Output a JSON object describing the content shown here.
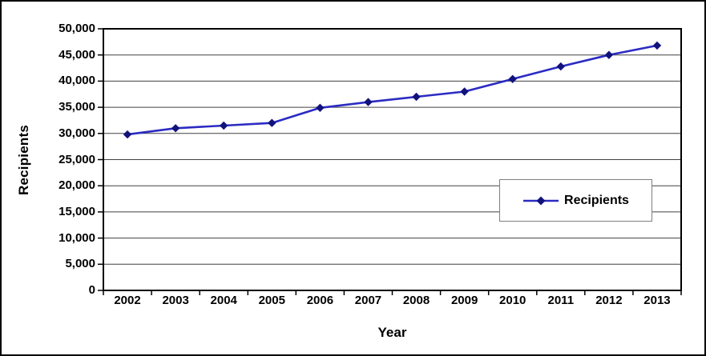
{
  "chart": {
    "y_axis_title": "Recipients",
    "x_axis_title": "Year",
    "legend_label": "Recipients",
    "colors": {
      "line": "#2b2bc3",
      "marker": "#12127d",
      "gridline": "#404040",
      "axis": "#000000",
      "legend_border": "#7f7f7f",
      "background": "#ffffff"
    }
  },
  "chart_data": {
    "type": "line",
    "title": "",
    "xlabel": "Year",
    "ylabel": "Recipients",
    "categories": [
      "2002",
      "2003",
      "2004",
      "2005",
      "2006",
      "2007",
      "2008",
      "2009",
      "2010",
      "2011",
      "2012",
      "2013"
    ],
    "series": [
      {
        "name": "Recipients",
        "values": [
          29800,
          31000,
          31500,
          32000,
          34900,
          36000,
          37000,
          38000,
          40400,
          42800,
          45000,
          46800
        ]
      }
    ],
    "ylim": [
      0,
      50000
    ],
    "ytick_interval": 5000,
    "ytick_labels": [
      "0",
      "5,000",
      "10,000",
      "15,000",
      "20,000",
      "25,000",
      "30,000",
      "35,000",
      "40,000",
      "45,000",
      "50,000"
    ],
    "grid": true,
    "marker": "diamond",
    "legend_position": "middle-right"
  }
}
